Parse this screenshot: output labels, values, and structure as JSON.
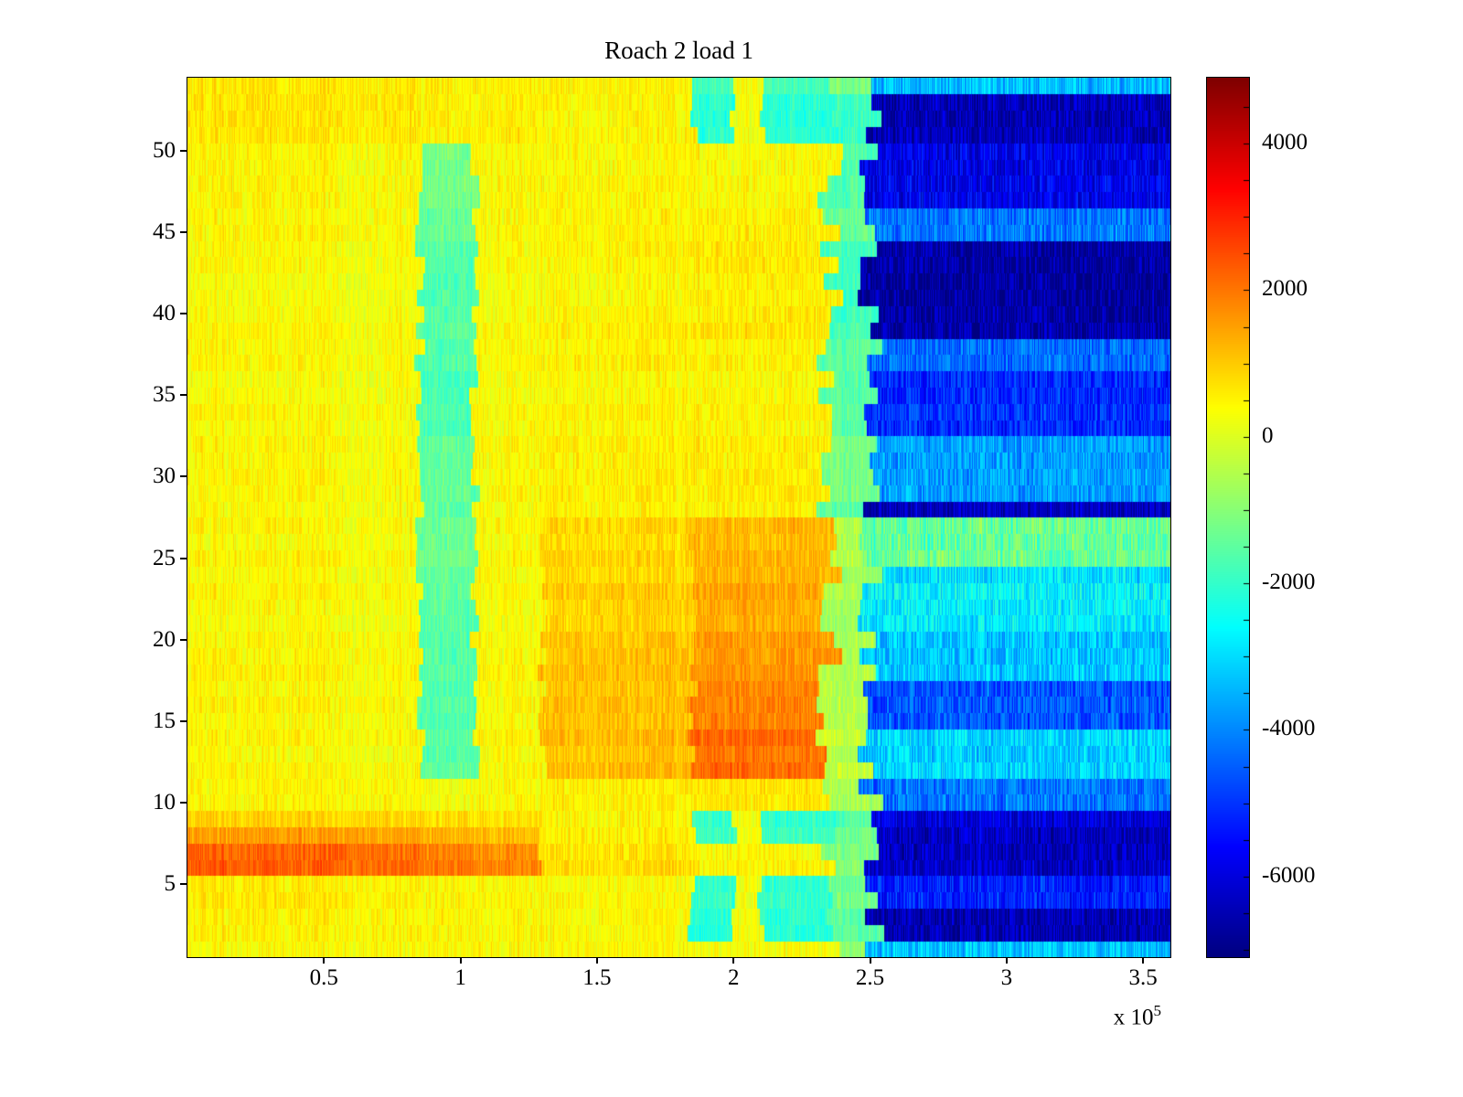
{
  "figure": {
    "background_color": "#ffffff"
  },
  "chart_data": {
    "type": "heatmap",
    "title": "Roach 2 load 1",
    "colormap": "jet",
    "legend": "none",
    "grid_lines": "off",
    "x_axis": {
      "range_1e5": [
        0,
        3.6
      ],
      "tick_labels": [
        "0.5",
        "1",
        "1.5",
        "2",
        "2.5",
        "3",
        "3.5"
      ],
      "exponent_text": "x 10",
      "exponent_sup": "5"
    },
    "y_axis": {
      "range": [
        0.5,
        54.5
      ],
      "tick_labels": [
        "5",
        "10",
        "15",
        "20",
        "25",
        "30",
        "35",
        "40",
        "45",
        "50"
      ]
    },
    "colorbar": {
      "min": -7100,
      "max": 4900,
      "tick_labels": [
        "4000",
        "2000",
        "0",
        "-2000",
        "-4000",
        "-6000"
      ],
      "minor_tick_step": 500,
      "position": "right"
    },
    "grid": {
      "rows": 54,
      "band_edges_1e5": [
        0,
        0.55,
        0.75,
        0.85,
        1.05,
        1.3,
        1.85,
        2.0,
        2.1,
        2.35,
        2.5,
        3.6
      ],
      "row_groups": [
        {
          "rows": [
            1,
            1
          ],
          "values": [
            400,
            400,
            400,
            400,
            400,
            400,
            300,
            300,
            300,
            -800,
            -3300
          ]
        },
        {
          "rows": [
            2,
            3
          ],
          "values": [
            500,
            420,
            420,
            420,
            420,
            350,
            -2200,
            250,
            -2200,
            -1500,
            -6600
          ]
        },
        {
          "rows": [
            4,
            5
          ],
          "values": [
            650,
            500,
            500,
            480,
            460,
            400,
            -2000,
            250,
            -2000,
            -1200,
            -5200
          ]
        },
        {
          "rows": [
            6,
            7
          ],
          "values": [
            2300,
            2100,
            2150,
            1900,
            1800,
            750,
            450,
            450,
            450,
            -1000,
            -6300
          ]
        },
        {
          "rows": [
            8,
            8
          ],
          "values": [
            1600,
            1500,
            1500,
            1300,
            1200,
            600,
            -1800,
            300,
            -1800,
            -1200,
            -6300
          ]
        },
        {
          "rows": [
            9,
            9
          ],
          "values": [
            950,
            850,
            850,
            750,
            700,
            500,
            -2000,
            250,
            -2000,
            -1500,
            -6000
          ]
        },
        {
          "rows": [
            10,
            11
          ],
          "values": [
            500,
            420,
            450,
            250,
            420,
            520,
            650,
            650,
            650,
            -600,
            -4200
          ]
        },
        {
          "rows": [
            12,
            14
          ],
          "values": [
            480,
            360,
            420,
            -1500,
            420,
            1150,
            2100,
            2150,
            2100,
            -300,
            -3100
          ]
        },
        {
          "rows": [
            15,
            17
          ],
          "values": [
            480,
            360,
            420,
            -1600,
            420,
            1100,
            1850,
            1850,
            1850,
            -450,
            -4600
          ]
        },
        {
          "rows": [
            18,
            20
          ],
          "values": [
            470,
            330,
            410,
            -1600,
            410,
            1050,
            1550,
            1550,
            1550,
            -550,
            -3300
          ]
        },
        {
          "rows": [
            21,
            23
          ],
          "values": [
            460,
            320,
            400,
            -1500,
            400,
            950,
            1400,
            1400,
            1400,
            -600,
            -2700
          ]
        },
        {
          "rows": [
            24,
            24
          ],
          "values": [
            450,
            320,
            400,
            -1400,
            400,
            850,
            1250,
            1250,
            1250,
            -700,
            -2900
          ]
        },
        {
          "rows": [
            25,
            27
          ],
          "values": [
            450,
            320,
            400,
            -1300,
            400,
            820,
            1200,
            1200,
            1200,
            -500,
            -1400
          ]
        },
        {
          "rows": [
            28,
            28
          ],
          "values": [
            430,
            300,
            400,
            -1500,
            400,
            520,
            520,
            520,
            520,
            -1500,
            -6300
          ]
        },
        {
          "rows": [
            29,
            32
          ],
          "values": [
            430,
            280,
            380,
            -1500,
            400,
            480,
            520,
            520,
            520,
            -1200,
            -3800
          ]
        },
        {
          "rows": [
            33,
            36
          ],
          "values": [
            430,
            280,
            380,
            -1700,
            400,
            470,
            470,
            470,
            470,
            -1500,
            -5100
          ]
        },
        {
          "rows": [
            37,
            38
          ],
          "values": [
            430,
            280,
            380,
            -1700,
            400,
            470,
            470,
            470,
            470,
            -1500,
            -4400
          ]
        },
        {
          "rows": [
            39,
            44
          ],
          "values": [
            430,
            290,
            380,
            -1600,
            400,
            480,
            620,
            620,
            620,
            -1800,
            -6700
          ]
        },
        {
          "rows": [
            45,
            46
          ],
          "values": [
            470,
            330,
            420,
            -1400,
            420,
            470,
            520,
            520,
            520,
            -1400,
            -4200
          ]
        },
        {
          "rows": [
            47,
            50
          ],
          "values": [
            520,
            380,
            470,
            -1200,
            450,
            470,
            430,
            430,
            430,
            -1600,
            -5800
          ]
        },
        {
          "rows": [
            51,
            53
          ],
          "values": [
            750,
            650,
            700,
            550,
            600,
            520,
            -2100,
            320,
            -2100,
            -1800,
            -6400
          ]
        },
        {
          "rows": [
            54,
            54
          ],
          "values": [
            650,
            550,
            600,
            500,
            550,
            470,
            -1800,
            250,
            -1800,
            -1200,
            -3400
          ]
        }
      ]
    },
    "noise": {
      "cell_amp": 400,
      "column_amp": 180,
      "row_amp": 80,
      "right_extra_amp": 400,
      "edge_jitter_1e5": 0.05
    }
  }
}
